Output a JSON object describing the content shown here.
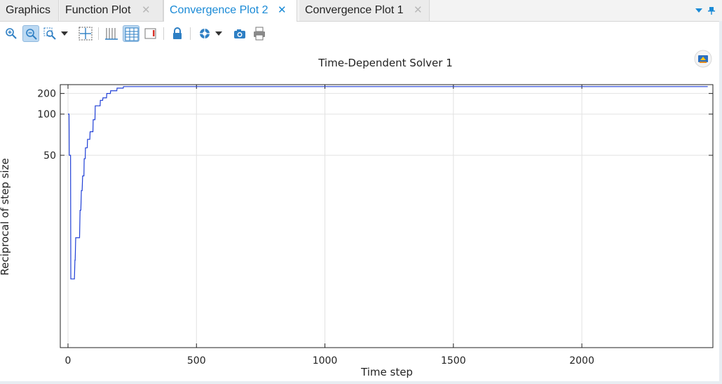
{
  "tabs": [
    {
      "label": "Graphics",
      "active": false,
      "closable": false
    },
    {
      "label": "Function Plot",
      "active": false,
      "closable": true
    },
    {
      "label": "Convergence Plot 2",
      "active": true,
      "closable": true
    },
    {
      "label": "Convergence Plot 1",
      "active": false,
      "closable": true
    }
  ],
  "toolbar": {
    "buttons": [
      "zoom-in-icon",
      "zoom-out-icon",
      "zoom-box-icon",
      "dropdown-arrow-icon",
      "zoom-extents-icon",
      "show-grid-icon",
      "show-legends-icon",
      "show-axis-icon",
      "lock-axis-icon",
      "scene-light-icon",
      "dropdown-arrow-icon",
      "image-snapshot-icon",
      "print-icon"
    ],
    "pressed": [
      "zoom-out-icon",
      "show-legends-icon"
    ]
  },
  "chart_data": {
    "type": "line",
    "title": "Time-Dependent Solver 1",
    "xlabel": "Time step",
    "ylabel": "Reciprocal of step size",
    "xlim": [
      -30,
      2510
    ],
    "ylim": [
      15,
      350
    ],
    "yscale": "reciprocal",
    "xticks": [
      0,
      500,
      1000,
      1500,
      2000
    ],
    "xtick_labels": [
      "0",
      "500",
      "1000",
      "1500",
      "2000"
    ],
    "yticks": [
      50,
      100,
      200
    ],
    "ytick_labels": [
      "50",
      "100",
      "200"
    ],
    "grid": true,
    "line_color": "#1f3fd6",
    "series": [
      {
        "values": [
          [
            0,
            100
          ],
          [
            4,
            100
          ],
          [
            5,
            50
          ],
          [
            10,
            50
          ],
          [
            11,
            20
          ],
          [
            25,
            20
          ],
          [
            27,
            22
          ],
          [
            28,
            22
          ],
          [
            30,
            25
          ],
          [
            45,
            25
          ],
          [
            47,
            30
          ],
          [
            50,
            30
          ],
          [
            52,
            35
          ],
          [
            55,
            35
          ],
          [
            57,
            40
          ],
          [
            62,
            40
          ],
          [
            63,
            48
          ],
          [
            67,
            48
          ],
          [
            68,
            55
          ],
          [
            75,
            55
          ],
          [
            76,
            62
          ],
          [
            85,
            62
          ],
          [
            86,
            70
          ],
          [
            97,
            70
          ],
          [
            98,
            88
          ],
          [
            105,
            88
          ],
          [
            106,
            125
          ],
          [
            125,
            125
          ],
          [
            126,
            150
          ],
          [
            135,
            150
          ],
          [
            136,
            165
          ],
          [
            150,
            165
          ],
          [
            151,
            200
          ],
          [
            165,
            200
          ],
          [
            166,
            230
          ],
          [
            190,
            230
          ],
          [
            191,
            270
          ],
          [
            215,
            270
          ],
          [
            216,
            300
          ],
          [
            2490,
            300
          ]
        ]
      }
    ]
  }
}
